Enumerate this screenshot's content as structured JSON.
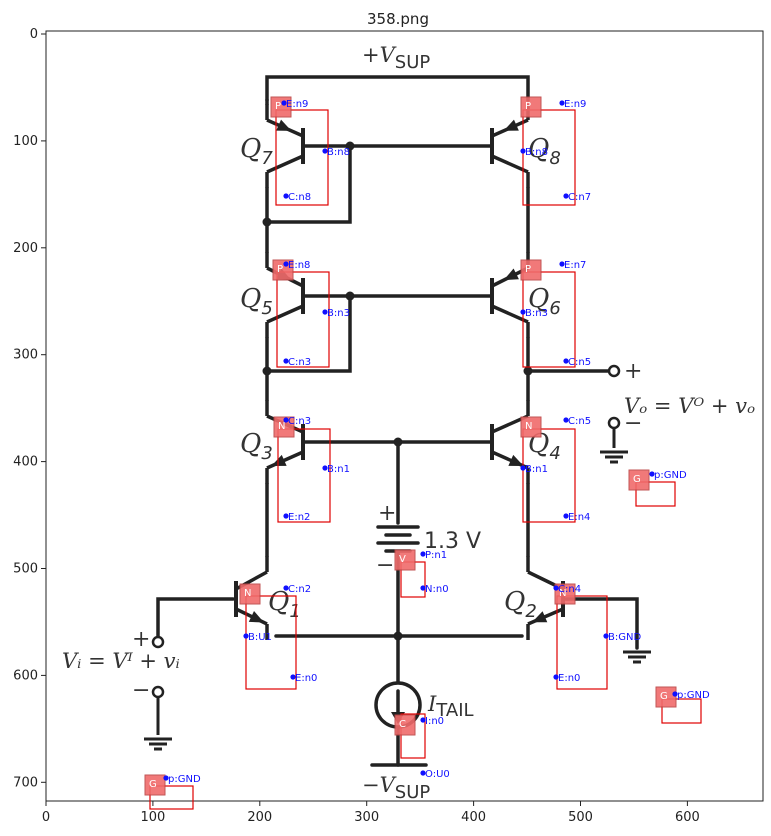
{
  "figure": {
    "title": "358.png",
    "x_ticks": [
      "0",
      "100",
      "200",
      "300",
      "400",
      "500",
      "600"
    ],
    "y_ticks": [
      "0",
      "100",
      "200",
      "300",
      "400",
      "500",
      "600",
      "700"
    ]
  },
  "circuit": {
    "supply_top_main": "+V",
    "supply_top_sub": "SUP",
    "supply_bottom_main": "−V",
    "supply_bottom_sub": "SUP",
    "battery_value": "1.3 V",
    "battery_plus": "+",
    "battery_minus": "−",
    "itail_main": "I",
    "itail_sub": "TAIL",
    "output_plus": "+",
    "output_minus": "−",
    "output_eq": "Vₒ = Vᴼ + vₒ",
    "input_plus": "+",
    "input_minus": "−",
    "input_eq": "Vᵢ = Vᴵ + vᵢ",
    "transistors": [
      {
        "name": "Q",
        "sub": "7"
      },
      {
        "name": "Q",
        "sub": "8"
      },
      {
        "name": "Q",
        "sub": "5"
      },
      {
        "name": "Q",
        "sub": "6"
      },
      {
        "name": "Q",
        "sub": "3"
      },
      {
        "name": "Q",
        "sub": "4"
      },
      {
        "name": "Q",
        "sub": "1"
      },
      {
        "name": "Q",
        "sub": "2"
      }
    ]
  },
  "annotations": {
    "tags": [
      "P",
      "P",
      "P",
      "P",
      "N",
      "N",
      "N",
      "N",
      "V",
      "C",
      "G",
      "G",
      "G"
    ],
    "pins": [
      "E:n9",
      "B:n8",
      "C:n8",
      "E:n9",
      "B:n8",
      "C:n7",
      "E:n8",
      "B:n3",
      "C:n3",
      "E:n7",
      "B:n3",
      "C:n5",
      "C:n3",
      "B:n1",
      "E:n2",
      "C:n5",
      "B:n1",
      "E:n4",
      "C:n2",
      "B:U1",
      "E:n0",
      "C:n4",
      "B:GND",
      "E:n0",
      "P:n1",
      "N:n0",
      "I:n0",
      "O:U0",
      "p:GND",
      "p:GND",
      "p:GND"
    ]
  }
}
